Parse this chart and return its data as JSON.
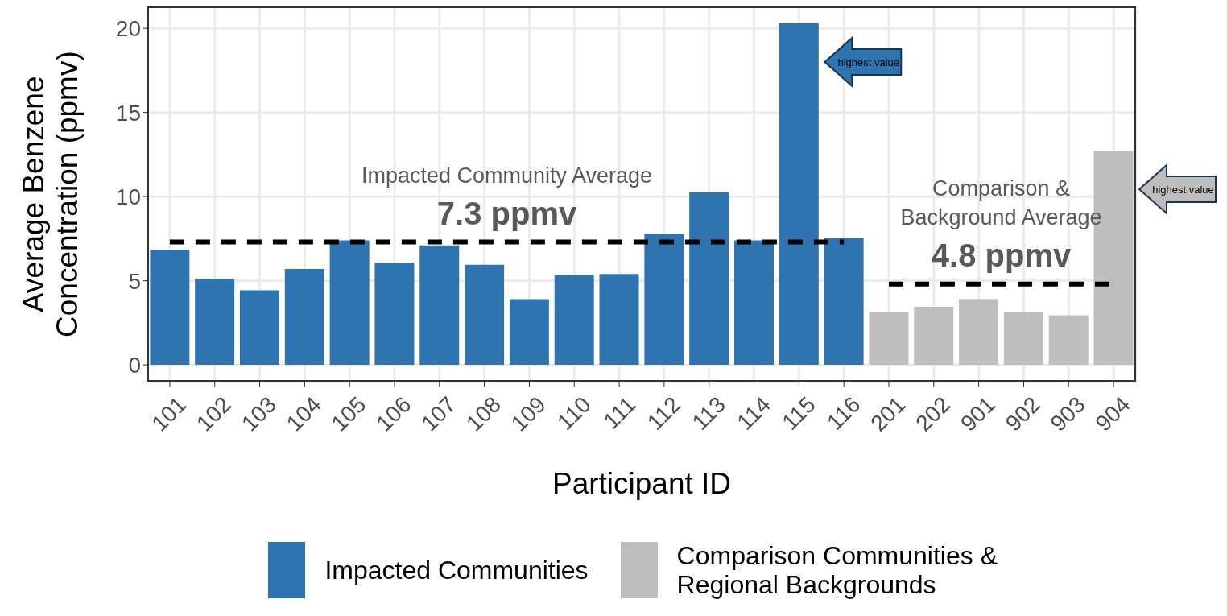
{
  "chart_data": {
    "type": "bar",
    "xlabel": "Participant ID",
    "ylabel": "Average Benzene Concentration (ppmv)",
    "categories": [
      "101",
      "102",
      "103",
      "104",
      "105",
      "106",
      "107",
      "108",
      "109",
      "110",
      "111",
      "112",
      "113",
      "114",
      "115",
      "116",
      "201",
      "202",
      "901",
      "902",
      "903",
      "904"
    ],
    "series": [
      {
        "name": "Impacted Communities",
        "color": "#2e74b0",
        "values": [
          6.85,
          5.13,
          4.43,
          5.7,
          7.4,
          6.08,
          7.1,
          5.95,
          3.9,
          5.34,
          5.4,
          7.78,
          10.25,
          7.4,
          20.3,
          7.52,
          null,
          null,
          null,
          null,
          null,
          null
        ]
      },
      {
        "name": "Comparison Communities & Regional Backgrounds",
        "color": "#bebebe",
        "values": [
          null,
          null,
          null,
          null,
          null,
          null,
          null,
          null,
          null,
          null,
          null,
          null,
          null,
          null,
          null,
          null,
          3.14,
          3.45,
          3.92,
          3.12,
          2.95,
          12.74
        ]
      }
    ],
    "ylim": [
      -1.0,
      21.3
    ],
    "yticks": [
      0,
      5,
      10,
      15,
      20
    ],
    "grid": true,
    "legend": "bottom",
    "ref_lines": [
      {
        "axis": "y",
        "value": 7.3,
        "label": "Impacted Community Average\n7.3 ppmv",
        "color": "#000000",
        "line_style": "dashed"
      },
      {
        "axis": "y",
        "value": 4.8,
        "label": "Comparison &\nBackground Average\n4.8 ppmv",
        "color": "#000000",
        "line_style": "dashed"
      }
    ],
    "annotations": [
      "highest value",
      "highest value"
    ]
  }
}
